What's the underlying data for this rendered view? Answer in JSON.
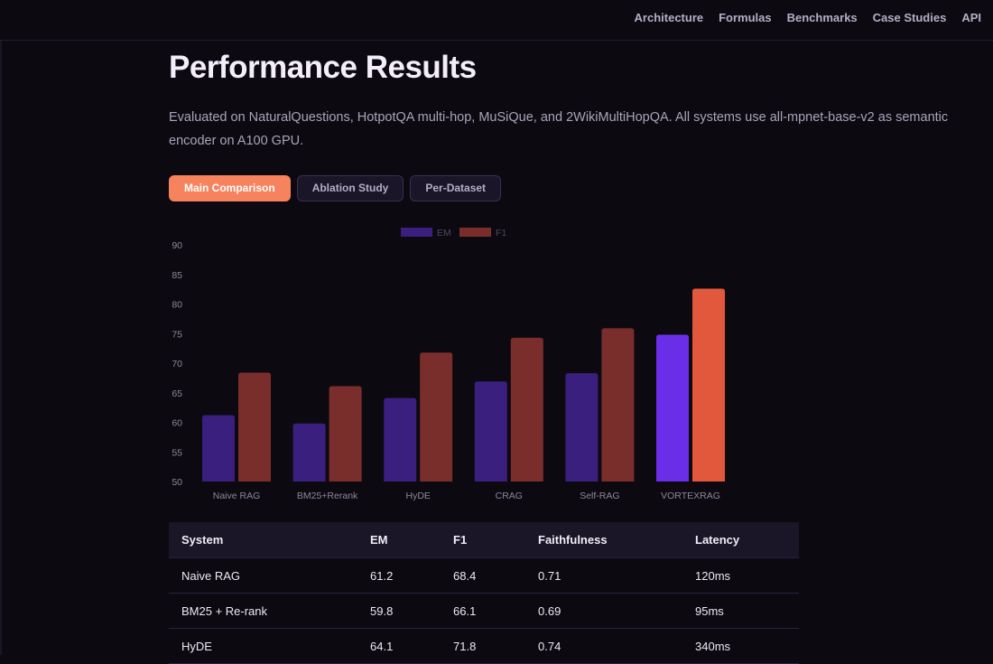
{
  "nav": {
    "links": [
      "Architecture",
      "Formulas",
      "Benchmarks",
      "Case Studies",
      "API"
    ]
  },
  "page": {
    "title": "Performance Results",
    "description": "Evaluated on NaturalQuestions, HotpotQA multi-hop, MuSiQue, and 2WikiMultiHopQA. All systems use all-mpnet-base-v2 as semantic encoder on A100 GPU."
  },
  "tabs": [
    {
      "label": "Main Comparison",
      "active": true
    },
    {
      "label": "Ablation Study",
      "active": false
    },
    {
      "label": "Per-Dataset",
      "active": false
    }
  ],
  "chart_data": {
    "type": "bar",
    "categories": [
      "Naive RAG",
      "BM25+Rerank",
      "HyDE",
      "CRAG",
      "Self-RAG",
      "VORTEXRAG"
    ],
    "series": [
      {
        "name": "EM",
        "values": [
          61.2,
          59.8,
          64.1,
          66.9,
          68.3,
          74.8
        ]
      },
      {
        "name": "F1",
        "values": [
          68.4,
          66.1,
          71.8,
          74.3,
          75.9,
          82.6
        ]
      }
    ],
    "ylim": [
      50,
      90
    ],
    "yticks": [
      90,
      85,
      80,
      75,
      70,
      65,
      60,
      55,
      50
    ],
    "legend_position": "top-center",
    "colors": {
      "em": "#3b1f7f",
      "f1": "#7a2e2b",
      "em_highlight": "#6a2ee8",
      "f1_highlight": "#e2583c"
    },
    "highlight_index": 5
  },
  "table": {
    "headers": [
      "System",
      "EM",
      "F1",
      "Faithfulness",
      "Latency"
    ],
    "rows": [
      [
        "Naive RAG",
        "61.2",
        "68.4",
        "0.71",
        "120ms"
      ],
      [
        "BM25 + Re-rank",
        "59.8",
        "66.1",
        "0.69",
        "95ms"
      ],
      [
        "HyDE",
        "64.1",
        "71.8",
        "0.74",
        "340ms"
      ]
    ]
  }
}
